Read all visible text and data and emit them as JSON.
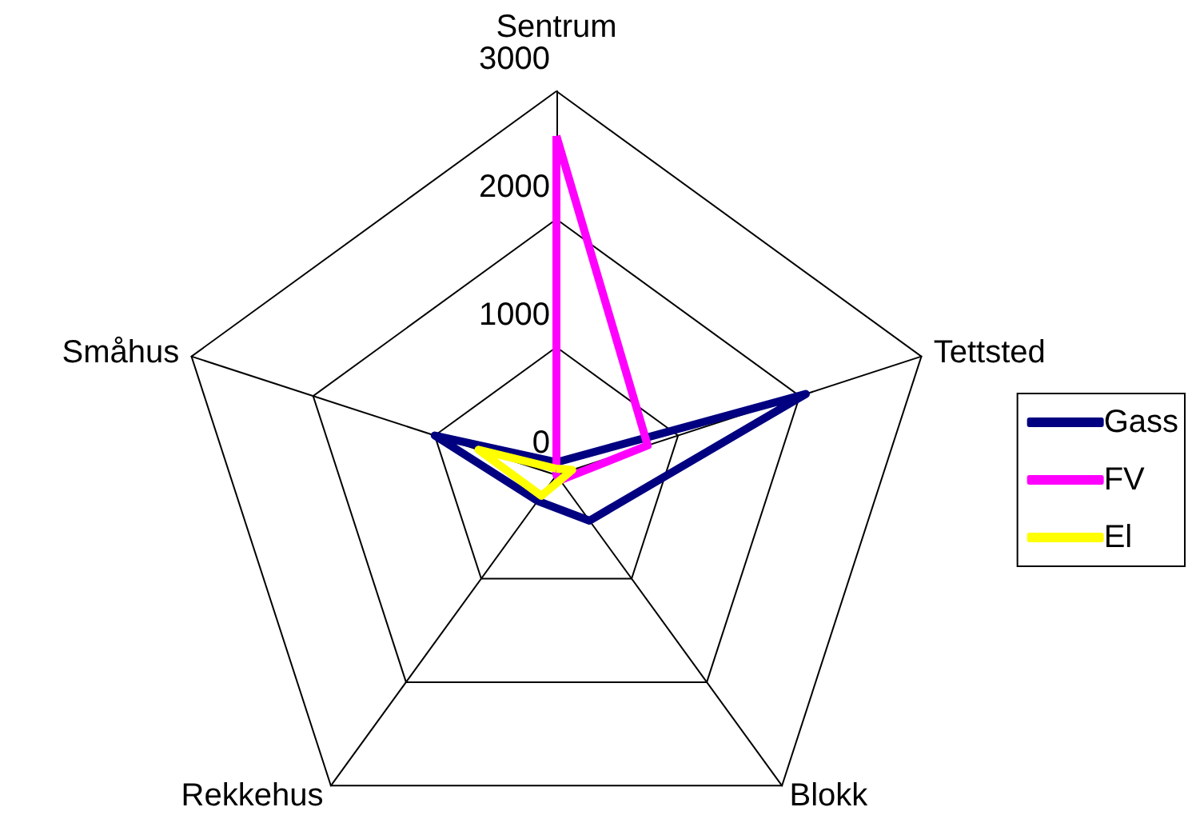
{
  "chart_data": {
    "type": "radar",
    "categories": [
      "Sentrum",
      "Tettsted",
      "Blokk",
      "Rekkehus",
      "Småhus"
    ],
    "series": [
      {
        "name": "Gass",
        "color": "#000080",
        "values": [
          100,
          2050,
          440,
          250,
          1000
        ]
      },
      {
        "name": "FV",
        "color": "#ff00ff",
        "values": [
          2650,
          750,
          50,
          0,
          0
        ]
      },
      {
        "name": "El",
        "color": "#ffff00",
        "values": [
          50,
          130,
          50,
          200,
          640
        ]
      }
    ],
    "ylim": [
      0,
      3000
    ],
    "yticks": [
      0,
      1000,
      2000,
      3000
    ],
    "legend": "right",
    "marker": "none",
    "line_style": "solid"
  }
}
